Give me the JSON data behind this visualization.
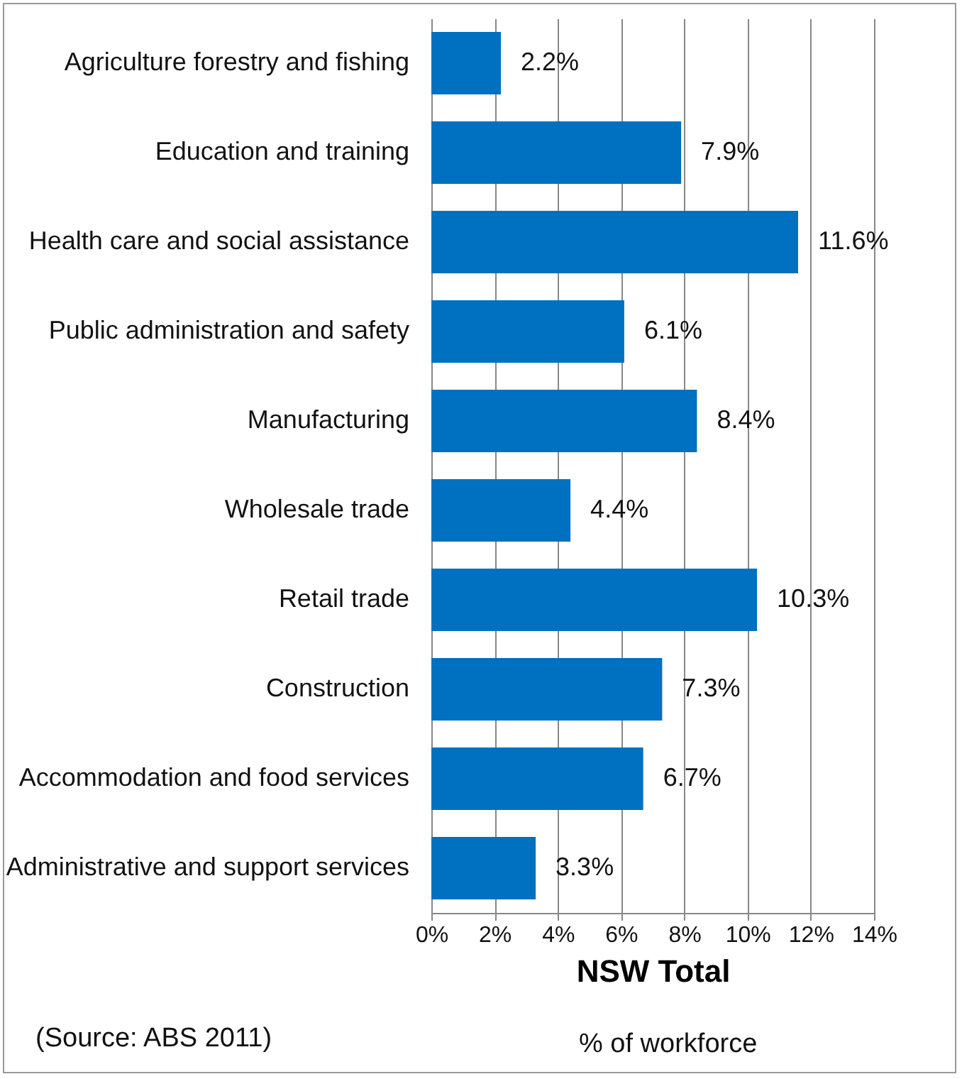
{
  "chart_data": {
    "type": "bar",
    "orientation": "horizontal",
    "xlabel": "NSW Total",
    "categories": [
      "Agriculture forestry and fishing",
      "Education and training",
      "Health care and social assistance",
      "Public administration and safety",
      "Manufacturing",
      "Wholesale trade",
      "Retail trade",
      "Construction",
      "Accommodation and food services",
      "Administrative and support services"
    ],
    "values": [
      2.2,
      7.9,
      11.6,
      6.1,
      8.4,
      4.4,
      10.3,
      7.3,
      6.7,
      3.3
    ],
    "color": "#0070c0",
    "value_labels": [
      "2.2%",
      "7.9%",
      "11.6%",
      "6.1%",
      "8.4%",
      "4.4%",
      "10.3%",
      "7.3%",
      "6.7%",
      "3.3%"
    ],
    "grid": "x",
    "xlim": [
      0,
      14
    ],
    "xticks": [
      {
        "value": 0,
        "label": "0%"
      },
      {
        "value": 2,
        "label": "2%"
      },
      {
        "value": 4,
        "label": "4%"
      },
      {
        "value": 6,
        "label": "6%"
      },
      {
        "value": 8,
        "label": "8%"
      },
      {
        "value": 10,
        "label": "10%"
      },
      {
        "value": 12,
        "label": "12%"
      },
      {
        "value": 14,
        "label": "14%"
      }
    ],
    "annotations": [
      "% of workforce",
      "(Source: ABS 2011)"
    ]
  }
}
